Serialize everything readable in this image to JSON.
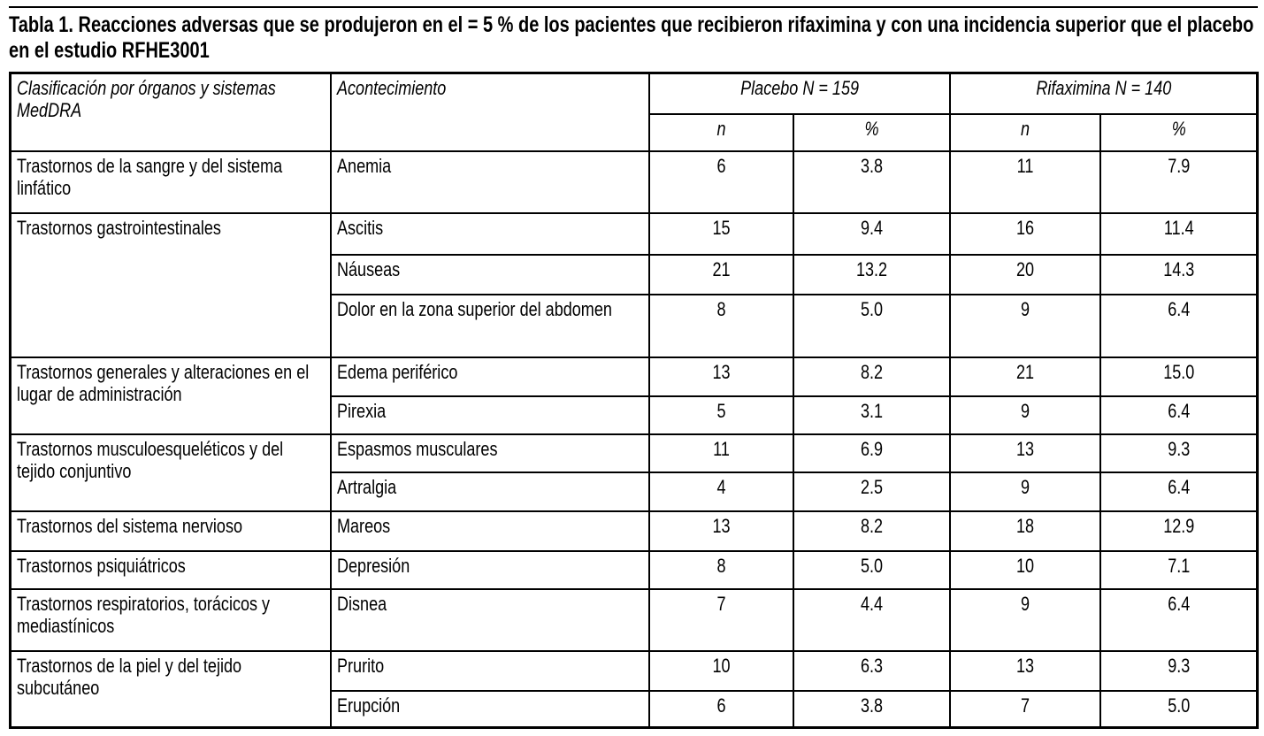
{
  "title": "Tabla 1. Reacciones adversas que se produjeron en el = 5 % de los pacientes que recibieron rifaximina y con una incidencia superior que el placebo en el estudio RFHE3001",
  "table": {
    "col_headers": {
      "classification": "Clasificación por órganos y sistemas MedDRA",
      "event": "Acontecimiento",
      "placebo": "Placebo N = 159",
      "rifaximina": "Rifaximina N = 140",
      "n": "n",
      "pct": "%"
    },
    "groups": [
      {
        "classification": "Trastornos de la sangre y del sistema linfático",
        "rows": [
          {
            "event": "Anemia",
            "placebo_n": "6",
            "placebo_pct": "3.8",
            "rifaximina_n": "11",
            "rifaximina_pct": "7.9"
          }
        ]
      },
      {
        "classification": "Trastornos gastrointestinales",
        "rows": [
          {
            "event": "Ascitis",
            "placebo_n": "15",
            "placebo_pct": "9.4",
            "rifaximina_n": "16",
            "rifaximina_pct": "11.4"
          },
          {
            "event": "Náuseas",
            "placebo_n": "21",
            "placebo_pct": "13.2",
            "rifaximina_n": "20",
            "rifaximina_pct": "14.3"
          },
          {
            "event": "Dolor en la zona superior del abdomen",
            "placebo_n": "8",
            "placebo_pct": "5.0",
            "rifaximina_n": "9",
            "rifaximina_pct": "6.4"
          }
        ]
      },
      {
        "classification": "Trastornos generales y alteraciones en el lugar de administración",
        "rows": [
          {
            "event": "Edema periférico",
            "placebo_n": "13",
            "placebo_pct": "8.2",
            "rifaximina_n": "21",
            "rifaximina_pct": "15.0"
          },
          {
            "event": "Pirexia",
            "placebo_n": "5",
            "placebo_pct": "3.1",
            "rifaximina_n": "9",
            "rifaximina_pct": "6.4"
          }
        ]
      },
      {
        "classification": "Trastornos musculoesqueléticos y del tejido conjuntivo",
        "rows": [
          {
            "event": "Espasmos musculares",
            "placebo_n": "11",
            "placebo_pct": "6.9",
            "rifaximina_n": "13",
            "rifaximina_pct": "9.3"
          },
          {
            "event": "Artralgia",
            "placebo_n": "4",
            "placebo_pct": "2.5",
            "rifaximina_n": "9",
            "rifaximina_pct": "6.4"
          }
        ]
      },
      {
        "classification": "Trastornos del sistema nervioso",
        "rows": [
          {
            "event": "Mareos",
            "placebo_n": "13",
            "placebo_pct": "8.2",
            "rifaximina_n": "18",
            "rifaximina_pct": "12.9"
          }
        ]
      },
      {
        "classification": "Trastornos psiquiátricos",
        "rows": [
          {
            "event": "Depresión",
            "placebo_n": "8",
            "placebo_pct": "5.0",
            "rifaximina_n": "10",
            "rifaximina_pct": "7.1"
          }
        ]
      },
      {
        "classification": "Trastornos respiratorios, torácicos y mediastínicos",
        "rows": [
          {
            "event": "Disnea",
            "placebo_n": "7",
            "placebo_pct": "4.4",
            "rifaximina_n": "9",
            "rifaximina_pct": "6.4"
          }
        ]
      },
      {
        "classification": "Trastornos de la piel y del tejido subcutáneo",
        "rows": [
          {
            "event": "Prurito",
            "placebo_n": "10",
            "placebo_pct": "6.3",
            "rifaximina_n": "13",
            "rifaximina_pct": "9.3"
          },
          {
            "event": "Erupción",
            "placebo_n": "6",
            "placebo_pct": "3.8",
            "rifaximina_n": "7",
            "rifaximina_pct": "5.0"
          }
        ]
      }
    ]
  }
}
